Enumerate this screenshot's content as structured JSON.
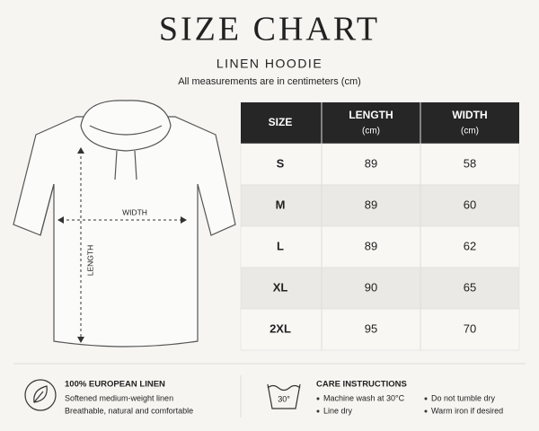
{
  "header": {
    "title": "SIZE CHART",
    "subtitle": "LINEN HOODIE",
    "note": "All measurements are in centimeters (cm)"
  },
  "illustration": {
    "width_label": "WIDTH",
    "length_label": "LENGTH"
  },
  "table": {
    "headers": [
      [
        "SIZE"
      ],
      [
        "LENGTH",
        "(cm)"
      ],
      [
        "WIDTH",
        "(cm)"
      ]
    ],
    "rows": [
      [
        "S",
        89,
        58
      ],
      [
        "M",
        89,
        60
      ],
      [
        "L",
        89,
        62
      ],
      [
        "XL",
        90,
        65
      ],
      [
        "2XL",
        95,
        70
      ]
    ]
  },
  "footer": {
    "fabric": {
      "title": "100% EUROPEAN LINEN",
      "lines": [
        "Softened medium-weight linen",
        "Breathable, natural and comfortable"
      ]
    },
    "care": {
      "title": "CARE INSTRUCTIONS",
      "icon_label": "30°",
      "items": [
        "Machine wash at 30°C",
        "Line dry",
        "Do not tumble dry",
        "Warm iron if desired"
      ]
    }
  }
}
